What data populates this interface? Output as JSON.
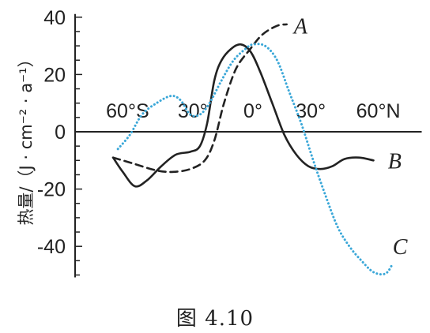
{
  "chart_data": {
    "type": "line",
    "ylabel": "热量/（J · cm⁻² · a⁻¹）",
    "ylim": [
      -50,
      40
    ],
    "xlim": [
      -70,
      70
    ],
    "y_ticks": [
      {
        "value": 40,
        "label": "40"
      },
      {
        "value": 20,
        "label": "20"
      },
      {
        "value": 0,
        "label": "0"
      },
      {
        "value": -20,
        "label": "-20"
      },
      {
        "value": -40,
        "label": "-40"
      }
    ],
    "x_tick_labels": [
      {
        "value": -52,
        "label": "60°S"
      },
      {
        "value": -25,
        "label": "30°"
      },
      {
        "value": 0,
        "label": "0°"
      },
      {
        "value": 24,
        "label": "30°"
      },
      {
        "value": 52,
        "label": "60°N"
      }
    ],
    "series": [
      {
        "name": "A",
        "style": "dashed",
        "color": "#222222",
        "label_pos": [
          15,
          37
        ],
        "points": [
          [
            -58,
            -9
          ],
          [
            -50,
            -11
          ],
          [
            -40,
            -13.5
          ],
          [
            -33,
            -14
          ],
          [
            -26,
            -13
          ],
          [
            -20,
            -10
          ],
          [
            -16,
            -3
          ],
          [
            -12,
            10
          ],
          [
            -7,
            22
          ],
          [
            -1,
            29
          ],
          [
            4,
            34
          ],
          [
            10,
            37
          ],
          [
            14,
            37.5
          ]
        ]
      },
      {
        "name": "B",
        "style": "solid",
        "color": "#222222",
        "label_pos": [
          54,
          -10
        ],
        "points": [
          [
            -58,
            -9
          ],
          [
            -54,
            -14
          ],
          [
            -49,
            -19
          ],
          [
            -44,
            -17
          ],
          [
            -38,
            -12
          ],
          [
            -32,
            -8
          ],
          [
            -26,
            -7
          ],
          [
            -22,
            -5
          ],
          [
            -19,
            3
          ],
          [
            -16,
            18
          ],
          [
            -13,
            25
          ],
          [
            -9,
            29
          ],
          [
            -5,
            30.5
          ],
          [
            -1,
            28
          ],
          [
            3,
            21
          ],
          [
            8,
            10
          ],
          [
            13,
            -1
          ],
          [
            18,
            -8
          ],
          [
            23,
            -12
          ],
          [
            28,
            -13
          ],
          [
            33,
            -12
          ],
          [
            38,
            -9.5
          ],
          [
            44,
            -9
          ],
          [
            50,
            -10
          ]
        ]
      },
      {
        "name": "C",
        "style": "dotted",
        "color": "#3aa7d8",
        "label_pos": [
          56,
          -40
        ],
        "points": [
          [
            -56,
            -6
          ],
          [
            -51,
            -1
          ],
          [
            -46,
            6
          ],
          [
            -40,
            10
          ],
          [
            -34,
            12.5
          ],
          [
            -30,
            11
          ],
          [
            -26,
            6
          ],
          [
            -22,
            6
          ],
          [
            -18,
            10
          ],
          [
            -13,
            18
          ],
          [
            -8,
            25
          ],
          [
            -3,
            29
          ],
          [
            0,
            30.5
          ],
          [
            5,
            30
          ],
          [
            10,
            25
          ],
          [
            15,
            14
          ],
          [
            20,
            3
          ],
          [
            25,
            -10
          ],
          [
            30,
            -22
          ],
          [
            35,
            -33
          ],
          [
            40,
            -40
          ],
          [
            45,
            -45
          ],
          [
            50,
            -49
          ],
          [
            55,
            -49.5
          ],
          [
            58,
            -46
          ]
        ]
      }
    ]
  },
  "caption": "图 4.10"
}
